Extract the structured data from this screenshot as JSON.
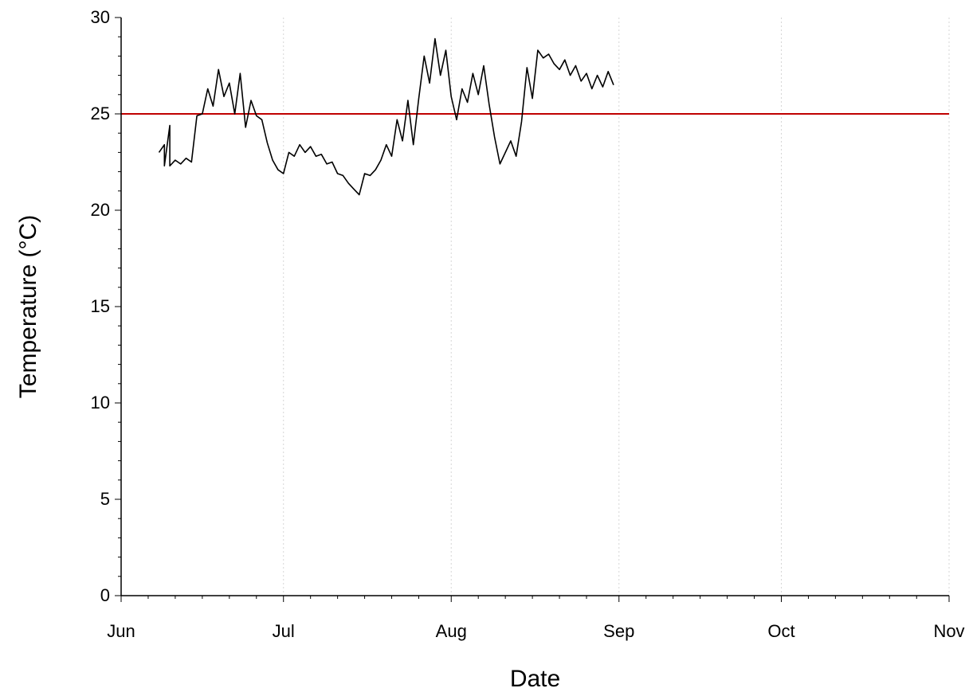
{
  "chart_data": {
    "type": "line",
    "title": "",
    "xlabel": "Date",
    "ylabel": "Temperature (°C)",
    "xlim": [
      "06-01",
      "11-01"
    ],
    "ylim": [
      0,
      30
    ],
    "x_ticks": [
      "Jun",
      "Jul",
      "Aug",
      "Sep",
      "Oct",
      "Nov"
    ],
    "x_tick_dates": [
      "06-01",
      "07-01",
      "08-01",
      "09-01",
      "10-01",
      "11-01"
    ],
    "y_ticks": [
      "0",
      "5",
      "10",
      "15",
      "20",
      "25",
      "30"
    ],
    "y_tick_values": [
      0,
      5,
      10,
      15,
      20,
      25,
      30
    ],
    "grid": "vertical dotted at month boundaries",
    "colors": {
      "series": "#000000",
      "threshold": "#c00000"
    },
    "threshold": {
      "y": 25,
      "color": "#c00000"
    },
    "series": [
      {
        "color": "#000000",
        "points": [
          [
            "06-08",
            23.0
          ],
          [
            "06-09",
            23.4
          ],
          [
            "06-09",
            22.3
          ],
          [
            "06-10",
            24.4
          ],
          [
            "06-10",
            22.3
          ],
          [
            "06-11",
            22.6
          ],
          [
            "06-12",
            22.4
          ],
          [
            "06-13",
            22.7
          ],
          [
            "06-14",
            22.5
          ],
          [
            "06-15",
            24.9
          ],
          [
            "06-16",
            25.0
          ],
          [
            "06-17",
            26.3
          ],
          [
            "06-18",
            25.4
          ],
          [
            "06-19",
            27.3
          ],
          [
            "06-20",
            25.9
          ],
          [
            "06-21",
            26.6
          ],
          [
            "06-22",
            25.0
          ],
          [
            "06-23",
            27.1
          ],
          [
            "06-24",
            24.3
          ],
          [
            "06-25",
            25.7
          ],
          [
            "06-26",
            24.9
          ],
          [
            "06-27",
            24.7
          ],
          [
            "06-28",
            23.5
          ],
          [
            "06-29",
            22.6
          ],
          [
            "06-30",
            22.1
          ],
          [
            "07-01",
            21.9
          ],
          [
            "07-02",
            23.0
          ],
          [
            "07-03",
            22.8
          ],
          [
            "07-04",
            23.4
          ],
          [
            "07-05",
            23.0
          ],
          [
            "07-06",
            23.3
          ],
          [
            "07-07",
            22.8
          ],
          [
            "07-08",
            22.9
          ],
          [
            "07-09",
            22.4
          ],
          [
            "07-10",
            22.5
          ],
          [
            "07-11",
            21.9
          ],
          [
            "07-12",
            21.8
          ],
          [
            "07-13",
            21.4
          ],
          [
            "07-14",
            21.1
          ],
          [
            "07-15",
            20.8
          ],
          [
            "07-16",
            21.9
          ],
          [
            "07-17",
            21.8
          ],
          [
            "07-18",
            22.1
          ],
          [
            "07-19",
            22.6
          ],
          [
            "07-20",
            23.4
          ],
          [
            "07-21",
            22.8
          ],
          [
            "07-22",
            24.7
          ],
          [
            "07-23",
            23.6
          ],
          [
            "07-24",
            25.7
          ],
          [
            "07-25",
            23.4
          ],
          [
            "07-26",
            25.8
          ],
          [
            "07-27",
            28.0
          ],
          [
            "07-28",
            26.6
          ],
          [
            "07-29",
            28.9
          ],
          [
            "07-30",
            27.0
          ],
          [
            "07-31",
            28.3
          ],
          [
            "08-01",
            25.9
          ],
          [
            "08-02",
            24.7
          ],
          [
            "08-03",
            26.3
          ],
          [
            "08-04",
            25.6
          ],
          [
            "08-05",
            27.1
          ],
          [
            "08-06",
            26.0
          ],
          [
            "08-07",
            27.5
          ],
          [
            "08-08",
            25.5
          ],
          [
            "08-09",
            23.8
          ],
          [
            "08-10",
            22.4
          ],
          [
            "08-11",
            23.0
          ],
          [
            "08-12",
            23.6
          ],
          [
            "08-13",
            22.8
          ],
          [
            "08-14",
            24.6
          ],
          [
            "08-15",
            27.4
          ],
          [
            "08-16",
            25.8
          ],
          [
            "08-17",
            28.3
          ],
          [
            "08-18",
            27.9
          ],
          [
            "08-19",
            28.1
          ],
          [
            "08-20",
            27.6
          ],
          [
            "08-21",
            27.3
          ],
          [
            "08-22",
            27.8
          ],
          [
            "08-23",
            27.0
          ],
          [
            "08-24",
            27.5
          ],
          [
            "08-25",
            26.7
          ],
          [
            "08-26",
            27.1
          ],
          [
            "08-27",
            26.3
          ],
          [
            "08-28",
            27.0
          ],
          [
            "08-29",
            26.4
          ],
          [
            "08-30",
            27.2
          ],
          [
            "08-31",
            26.5
          ]
        ]
      }
    ]
  }
}
